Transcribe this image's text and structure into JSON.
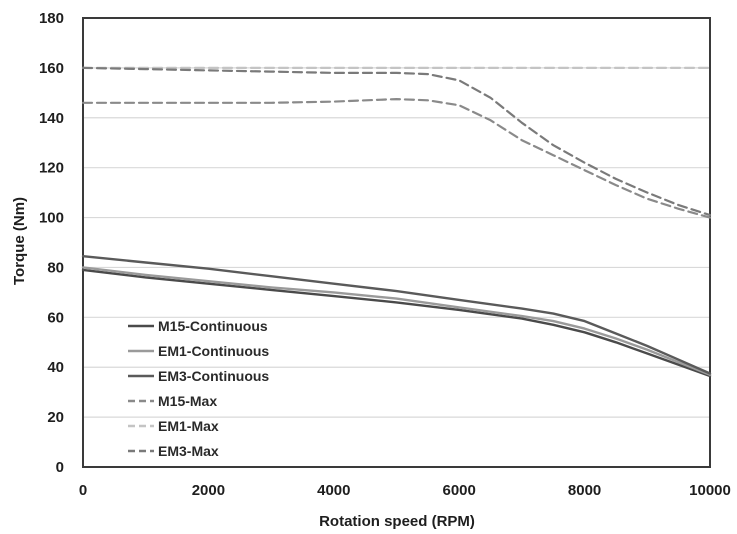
{
  "chart_data": {
    "type": "line",
    "title": "",
    "xlabel": "Rotation speed (RPM)",
    "ylabel": "Torque (Nm)",
    "xlim": [
      0,
      10000
    ],
    "ylim": [
      0,
      180
    ],
    "x_ticks": [
      0,
      2000,
      4000,
      6000,
      8000,
      10000
    ],
    "y_ticks": [
      0,
      20,
      40,
      60,
      80,
      100,
      120,
      140,
      160,
      180
    ],
    "grid": "horizontal",
    "legend_position": "bottom-left",
    "series": [
      {
        "name": "M15-Continuous",
        "style": "solid",
        "color": "#4a4a4a",
        "x": [
          0,
          1000,
          2000,
          3000,
          4000,
          5000,
          6000,
          7000,
          7500,
          8000,
          8500,
          9000,
          9500,
          10000
        ],
        "y": [
          79,
          76,
          73.5,
          71,
          68.5,
          66,
          63,
          59.5,
          57,
          54,
          50,
          45.5,
          41,
          36.5
        ]
      },
      {
        "name": "EM1-Continuous",
        "style": "solid",
        "color": "#9a9a9a",
        "x": [
          0,
          1000,
          2000,
          3000,
          4000,
          5000,
          6000,
          7000,
          7500,
          8000,
          8500,
          9000,
          9500,
          10000
        ],
        "y": [
          80,
          77,
          74.5,
          72,
          70,
          67.5,
          64,
          60.5,
          58.5,
          55.5,
          51.5,
          47,
          42,
          37
        ]
      },
      {
        "name": "EM3-Continuous",
        "style": "solid",
        "color": "#5a5a5a",
        "x": [
          0,
          1000,
          2000,
          3000,
          4000,
          5000,
          6000,
          7000,
          7500,
          8000,
          8500,
          9000,
          9500,
          10000
        ],
        "y": [
          84.5,
          82,
          79.5,
          76.5,
          73.5,
          70.5,
          67,
          63.5,
          61.5,
          58.5,
          53.5,
          48.5,
          43,
          37.5
        ]
      },
      {
        "name": "M15-Max",
        "style": "dashed",
        "color": "#8a8a8a",
        "x": [
          0,
          1000,
          2000,
          3000,
          4000,
          5000,
          5500,
          6000,
          6500,
          7000,
          7500,
          8000,
          8500,
          9000,
          9500,
          10000
        ],
        "y": [
          146,
          146,
          146,
          146,
          146.5,
          147.5,
          147,
          145,
          139,
          131,
          125,
          119,
          113,
          107.5,
          103.5,
          100
        ]
      },
      {
        "name": "EM1-Max",
        "style": "dashed",
        "color": "#c4c4c4",
        "x": [
          0,
          1000,
          2000,
          3000,
          4000,
          5000,
          6000,
          7000,
          8000,
          9000,
          10000
        ],
        "y": [
          160,
          160,
          160,
          160,
          160,
          160,
          160,
          160,
          160,
          160,
          160
        ]
      },
      {
        "name": "EM3-Max",
        "style": "dashed",
        "color": "#7a7a7a",
        "x": [
          0,
          1000,
          2000,
          3000,
          4000,
          5000,
          5500,
          6000,
          6500,
          7000,
          7500,
          8000,
          8500,
          9000,
          9500,
          10000
        ],
        "y": [
          160,
          159.5,
          159,
          158.5,
          158,
          158,
          157.5,
          155,
          148,
          138,
          129,
          122,
          115.5,
          110,
          105,
          101
        ]
      }
    ]
  }
}
